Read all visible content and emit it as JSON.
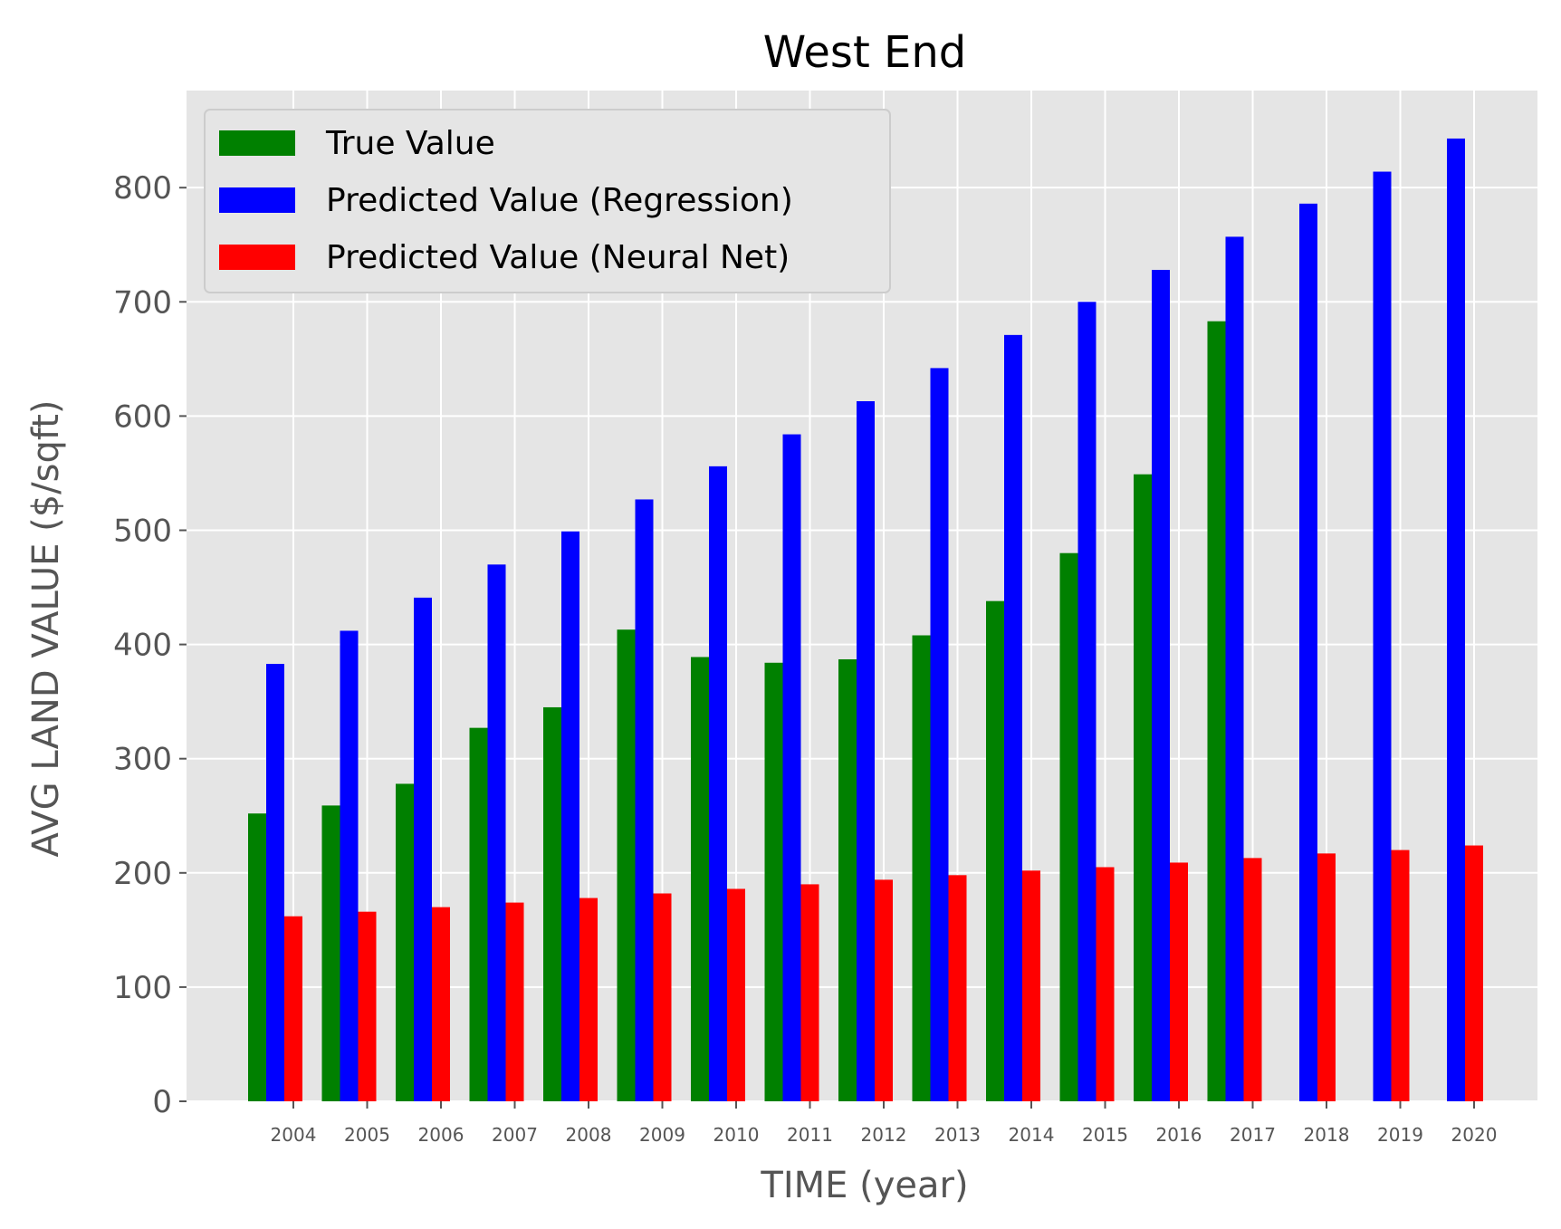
{
  "chart_data": {
    "type": "bar",
    "title": "West End",
    "xlabel": "TIME (year)",
    "ylabel": "AVG LAND VALUE ($/sqft)",
    "categories": [
      "2004",
      "2005",
      "2006",
      "2007",
      "2008",
      "2009",
      "2010",
      "2011",
      "2012",
      "2013",
      "2014",
      "2015",
      "2016",
      "2017",
      "2018",
      "2019",
      "2020"
    ],
    "series": [
      {
        "name": "True Value",
        "color": "#008000",
        "values": [
          252,
          259,
          278,
          327,
          345,
          413,
          389,
          384,
          387,
          408,
          438,
          480,
          549,
          683,
          null,
          null,
          null
        ]
      },
      {
        "name": "Predicted Value (Regression)",
        "color": "#0000ff",
        "values": [
          383,
          412,
          441,
          470,
          499,
          527,
          556,
          584,
          613,
          642,
          671,
          700,
          728,
          757,
          786,
          814,
          843
        ]
      },
      {
        "name": "Predicted Value (Neural Net)",
        "color": "#ff0000",
        "values": [
          162,
          166,
          170,
          174,
          178,
          182,
          186,
          190,
          194,
          198,
          202,
          205,
          209,
          213,
          217,
          220,
          224
        ]
      }
    ],
    "ylim": [
      0,
      885
    ],
    "yticks": [
      0,
      100,
      200,
      300,
      400,
      500,
      600,
      700,
      800
    ],
    "grid": true,
    "legend_position": "top-left",
    "background_color": "#e5e5e5"
  }
}
